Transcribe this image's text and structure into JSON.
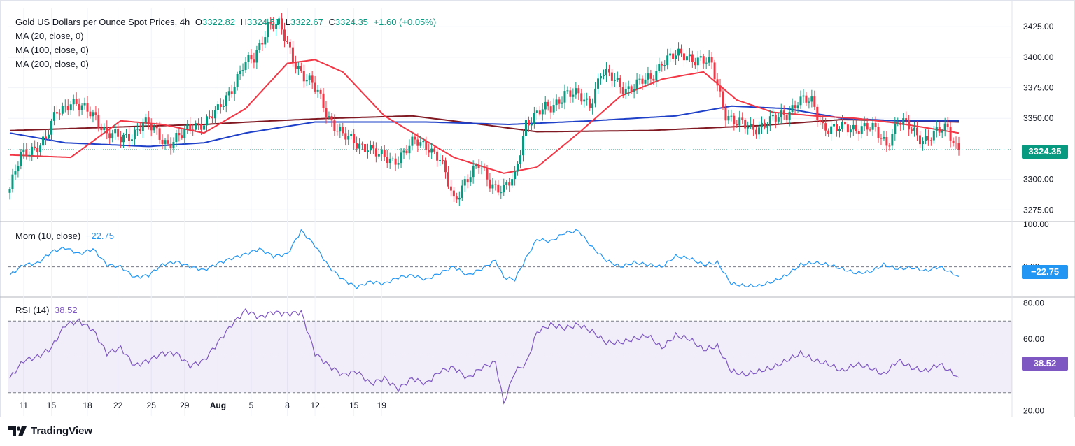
{
  "header": {
    "symbol": "Gold US Dollars per Ounce Spot Prices, 4h",
    "open_label": "O",
    "open": "3322.82",
    "high_label": "H",
    "high": "3324.51",
    "low_label": "L",
    "low": "3322.67",
    "close_label": "C",
    "close": "3324.35",
    "change": "+1.60 (+0.05%)"
  },
  "ma_legend": [
    "MA (20, close, 0)",
    "MA (100, close, 0)",
    "MA (200, close, 0)"
  ],
  "mom_legend": {
    "label": "Mom (10, close)",
    "value": "−22.75"
  },
  "rsi_legend": {
    "label": "RSI (14)",
    "value": "38.52"
  },
  "price_badge": "3324.35",
  "mom_badge": "−22.75",
  "rsi_badge": "38.52",
  "footer": {
    "brand": "TradingView"
  },
  "colors": {
    "up": "#089981",
    "down": "#f23645",
    "ma20": "#f23645",
    "ma100": "#1e40c8",
    "ma200": "#801922",
    "mom": "#2196f3",
    "rsi": "#7e57c2"
  },
  "chart_data": {
    "type": "candlestick",
    "x_ticks": [
      "11",
      "15",
      "18",
      "22",
      "25",
      "29",
      "Aug",
      "5",
      "8",
      "12",
      "15",
      "19"
    ],
    "price_axis": {
      "ticks": [
        "3425.00",
        "3400.00",
        "3375.00",
        "3350.00",
        "3300.00",
        "3275.00"
      ],
      "range": [
        3266,
        3440
      ]
    },
    "mom_axis": {
      "ticks": [
        "100.00",
        "0.00"
      ],
      "range": [
        -70,
        105
      ]
    },
    "rsi_axis": {
      "ticks": [
        "80.00",
        "60.00",
        "20.00"
      ],
      "range": [
        17,
        83
      ],
      "bands": [
        30,
        50,
        70
      ]
    },
    "price_anchors": [
      [
        0,
        3292
      ],
      [
        4,
        3318
      ],
      [
        8,
        3326
      ],
      [
        13,
        3332
      ],
      [
        17,
        3355
      ],
      [
        22,
        3365
      ],
      [
        26,
        3357
      ],
      [
        31,
        3352
      ],
      [
        35,
        3338
      ],
      [
        40,
        3332
      ],
      [
        44,
        3338
      ],
      [
        48,
        3346
      ],
      [
        53,
        3338
      ],
      [
        57,
        3330
      ],
      [
        62,
        3335
      ],
      [
        66,
        3345
      ],
      [
        71,
        3348
      ],
      [
        75,
        3355
      ],
      [
        79,
        3372
      ],
      [
        84,
        3392
      ],
      [
        88,
        3398
      ],
      [
        93,
        3428
      ],
      [
        97,
        3425
      ],
      [
        102,
        3400
      ],
      [
        106,
        3385
      ],
      [
        111,
        3370
      ],
      [
        115,
        3352
      ],
      [
        120,
        3335
      ],
      [
        124,
        3330
      ],
      [
        129,
        3328
      ],
      [
        133,
        3318
      ],
      [
        138,
        3316
      ],
      [
        142,
        3322
      ],
      [
        146,
        3330
      ],
      [
        151,
        3328
      ],
      [
        155,
        3316
      ],
      [
        160,
        3282
      ],
      [
        164,
        3300
      ],
      [
        169,
        3310
      ],
      [
        173,
        3298
      ],
      [
        178,
        3292
      ],
      [
        182,
        3300
      ],
      [
        186,
        3348
      ],
      [
        191,
        3355
      ],
      [
        195,
        3358
      ],
      [
        200,
        3372
      ],
      [
        204,
        3368
      ],
      [
        209,
        3362
      ],
      [
        213,
        3388
      ],
      [
        218,
        3380
      ],
      [
        222,
        3375
      ],
      [
        227,
        3378
      ],
      [
        231,
        3382
      ],
      [
        235,
        3398
      ],
      [
        240,
        3400
      ],
      [
        244,
        3402
      ],
      [
        249,
        3398
      ],
      [
        253,
        3392
      ],
      [
        258,
        3355
      ],
      [
        262,
        3345
      ],
      [
        267,
        3342
      ],
      [
        271,
        3345
      ],
      [
        276,
        3348
      ],
      [
        280,
        3355
      ],
      [
        284,
        3365
      ],
      [
        289,
        3362
      ],
      [
        293,
        3345
      ],
      [
        298,
        3340
      ],
      [
        302,
        3342
      ],
      [
        307,
        3344
      ],
      [
        311,
        3340
      ],
      [
        316,
        3330
      ],
      [
        320,
        3348
      ],
      [
        325,
        3340
      ],
      [
        329,
        3334
      ],
      [
        333,
        3336
      ],
      [
        338,
        3342
      ],
      [
        342,
        3324
      ]
    ],
    "ma20_anchors": [
      [
        0,
        3320
      ],
      [
        22,
        3318
      ],
      [
        40,
        3348
      ],
      [
        55,
        3345
      ],
      [
        70,
        3338
      ],
      [
        85,
        3358
      ],
      [
        100,
        3395
      ],
      [
        110,
        3398
      ],
      [
        120,
        3388
      ],
      [
        135,
        3352
      ],
      [
        160,
        3318
      ],
      [
        178,
        3305
      ],
      [
        190,
        3310
      ],
      [
        205,
        3338
      ],
      [
        220,
        3368
      ],
      [
        235,
        3382
      ],
      [
        250,
        3388
      ],
      [
        262,
        3365
      ],
      [
        275,
        3355
      ],
      [
        290,
        3352
      ],
      [
        305,
        3350
      ],
      [
        320,
        3346
      ],
      [
        342,
        3338
      ]
    ],
    "ma100_anchors": [
      [
        0,
        3338
      ],
      [
        20,
        3330
      ],
      [
        50,
        3327
      ],
      [
        70,
        3330
      ],
      [
        85,
        3338
      ],
      [
        110,
        3347
      ],
      [
        150,
        3347
      ],
      [
        180,
        3345
      ],
      [
        210,
        3348
      ],
      [
        240,
        3352
      ],
      [
        260,
        3360
      ],
      [
        280,
        3358
      ],
      [
        300,
        3350
      ],
      [
        320,
        3348
      ],
      [
        342,
        3348
      ]
    ],
    "ma200_anchors": [
      [
        0,
        3340
      ],
      [
        40,
        3343
      ],
      [
        70,
        3345
      ],
      [
        95,
        3348
      ],
      [
        115,
        3350
      ],
      [
        145,
        3352
      ],
      [
        170,
        3345
      ],
      [
        190,
        3339
      ],
      [
        230,
        3340
      ],
      [
        270,
        3344
      ],
      [
        300,
        3349
      ],
      [
        342,
        3347
      ]
    ],
    "mom_anchors": [
      [
        0,
        -20
      ],
      [
        5,
        5
      ],
      [
        10,
        8
      ],
      [
        15,
        35
      ],
      [
        20,
        45
      ],
      [
        25,
        30
      ],
      [
        30,
        42
      ],
      [
        35,
        5
      ],
      [
        40,
        0
      ],
      [
        45,
        -25
      ],
      [
        50,
        -20
      ],
      [
        55,
        5
      ],
      [
        60,
        12
      ],
      [
        65,
        0
      ],
      [
        70,
        -8
      ],
      [
        75,
        8
      ],
      [
        80,
        20
      ],
      [
        85,
        30
      ],
      [
        90,
        42
      ],
      [
        95,
        25
      ],
      [
        100,
        30
      ],
      [
        105,
        85
      ],
      [
        110,
        50
      ],
      [
        115,
        0
      ],
      [
        120,
        -30
      ],
      [
        125,
        -48
      ],
      [
        130,
        -35
      ],
      [
        135,
        -40
      ],
      [
        140,
        -25
      ],
      [
        145,
        -20
      ],
      [
        150,
        -30
      ],
      [
        155,
        -15
      ],
      [
        160,
        0
      ],
      [
        165,
        -20
      ],
      [
        170,
        -5
      ],
      [
        175,
        15
      ],
      [
        178,
        -25
      ],
      [
        182,
        -30
      ],
      [
        186,
        20
      ],
      [
        190,
        65
      ],
      [
        195,
        60
      ],
      [
        200,
        80
      ],
      [
        205,
        85
      ],
      [
        210,
        45
      ],
      [
        215,
        15
      ],
      [
        220,
        0
      ],
      [
        225,
        10
      ],
      [
        230,
        5
      ],
      [
        235,
        0
      ],
      [
        240,
        25
      ],
      [
        245,
        20
      ],
      [
        250,
        5
      ],
      [
        255,
        10
      ],
      [
        260,
        -40
      ],
      [
        265,
        -45
      ],
      [
        270,
        -45
      ],
      [
        275,
        -35
      ],
      [
        280,
        -20
      ],
      [
        285,
        5
      ],
      [
        290,
        10
      ],
      [
        295,
        5
      ],
      [
        300,
        -5
      ],
      [
        305,
        -15
      ],
      [
        310,
        -12
      ],
      [
        315,
        5
      ],
      [
        320,
        -5
      ],
      [
        325,
        -2
      ],
      [
        330,
        -10
      ],
      [
        335,
        0
      ],
      [
        342,
        -22.75
      ]
    ],
    "rsi_anchors": [
      [
        0,
        38
      ],
      [
        5,
        48
      ],
      [
        10,
        50
      ],
      [
        15,
        55
      ],
      [
        20,
        68
      ],
      [
        25,
        70
      ],
      [
        30,
        65
      ],
      [
        35,
        52
      ],
      [
        40,
        55
      ],
      [
        45,
        45
      ],
      [
        50,
        48
      ],
      [
        55,
        52
      ],
      [
        60,
        52
      ],
      [
        65,
        45
      ],
      [
        70,
        48
      ],
      [
        75,
        58
      ],
      [
        80,
        68
      ],
      [
        85,
        76
      ],
      [
        90,
        72
      ],
      [
        95,
        75
      ],
      [
        100,
        74
      ],
      [
        105,
        75
      ],
      [
        110,
        52
      ],
      [
        115,
        45
      ],
      [
        120,
        40
      ],
      [
        125,
        42
      ],
      [
        130,
        35
      ],
      [
        135,
        38
      ],
      [
        140,
        32
      ],
      [
        145,
        38
      ],
      [
        150,
        35
      ],
      [
        155,
        42
      ],
      [
        160,
        44
      ],
      [
        165,
        38
      ],
      [
        170,
        44
      ],
      [
        175,
        47
      ],
      [
        178,
        24
      ],
      [
        182,
        42
      ],
      [
        186,
        46
      ],
      [
        190,
        64
      ],
      [
        195,
        68
      ],
      [
        200,
        66
      ],
      [
        205,
        68
      ],
      [
        210,
        64
      ],
      [
        215,
        58
      ],
      [
        220,
        58
      ],
      [
        225,
        60
      ],
      [
        230,
        62
      ],
      [
        235,
        55
      ],
      [
        240,
        62
      ],
      [
        245,
        60
      ],
      [
        250,
        54
      ],
      [
        255,
        56
      ],
      [
        260,
        42
      ],
      [
        265,
        40
      ],
      [
        270,
        42
      ],
      [
        275,
        44
      ],
      [
        280,
        48
      ],
      [
        285,
        52
      ],
      [
        290,
        48
      ],
      [
        295,
        46
      ],
      [
        300,
        42
      ],
      [
        305,
        46
      ],
      [
        310,
        44
      ],
      [
        315,
        40
      ],
      [
        320,
        48
      ],
      [
        325,
        44
      ],
      [
        330,
        42
      ],
      [
        335,
        46
      ],
      [
        342,
        38.52
      ]
    ]
  }
}
